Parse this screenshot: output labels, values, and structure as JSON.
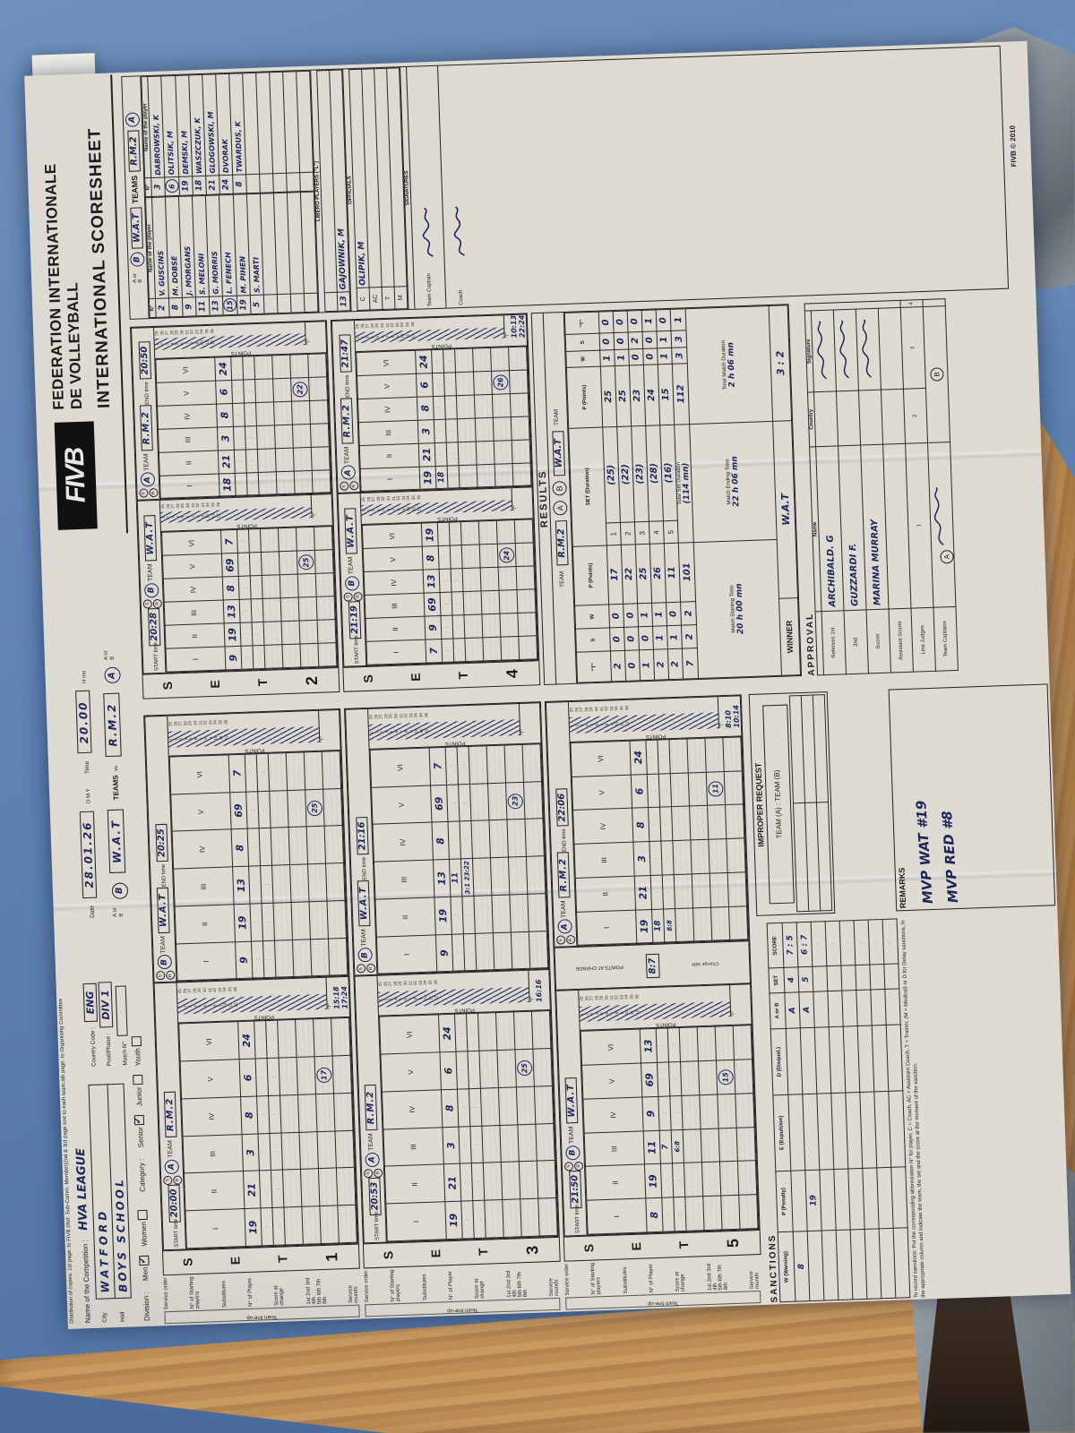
{
  "scene": {
    "floor_color": "#5d81b1",
    "wood_color": "#b88952",
    "metal_color": "#8a9299",
    "ink_color": "#20265a"
  },
  "sheet": {
    "distribution_note": "Distribution of copies: 1st page: to FIVB (Ref. Sub-Comm. Member)2nd & 3rd page one to each team;4th page: to Organising Committee",
    "header": {
      "logo_text": "FIVB",
      "title_line1": "FEDERATION INTERNATIONALE",
      "title_line2": "DE VOLLEYBALL",
      "subtitle": "INTERNATIONAL SCORESHEET",
      "competition_label": "Name of the Competition :",
      "competition_value": "HVA LEAGUE",
      "city_label": "City",
      "city_value": "WATFORD",
      "hall_label": "Hall",
      "hall_value": "BOYS SCHOOL",
      "country_code_label": "Country Code :",
      "country_code_value": "ENG",
      "pool_label": "Pool/Phase :",
      "pool_value": "DIV 1",
      "match_no_label": "Match N°",
      "match_no_value": "",
      "date_label": "Date",
      "date_value": "28.01.26",
      "date_sub": "D      M      Y",
      "time_label": "Time",
      "time_value": "20.00",
      "time_sub": "H      mn",
      "division_label": "Division :",
      "division_options": [
        {
          "label": "Men",
          "checked": true
        },
        {
          "label": "Women",
          "checked": false
        }
      ],
      "category_label": "Category :",
      "category_options": [
        {
          "label": "Senior",
          "checked": true
        },
        {
          "label": "Junior",
          "checked": false
        },
        {
          "label": "Youth",
          "checked": false
        }
      ],
      "a_or_b_label": "A or B",
      "teams_label": "TEAMS",
      "vs_label": "vs",
      "team_left": {
        "circle": "B",
        "name": "W.A.T"
      },
      "team_right": {
        "circle": "A",
        "name": "R.M.2"
      }
    },
    "panel_labels": {
      "set_word": "SET",
      "start": "START time",
      "end": "END time",
      "team": "TEAM",
      "points": "POINTS",
      "t": "\"T\"",
      "hmn": "H    mn",
      "service_order": "Service order",
      "starting_players": "N° of Starting players",
      "substitutes": "Substitutes",
      "player_no": "N° of Player",
      "score_change": "Score at change",
      "service_rounds": "Service rounds",
      "team_lineup": "Team line-up",
      "change_side": "Change side",
      "points_at_change": "POINTS AT CHANGE",
      "romans": [
        "I",
        "II",
        "III",
        "IV",
        "V",
        "VI"
      ],
      "rounds": [
        "1st",
        "2nd",
        "3rd",
        "4th",
        "5th",
        "6th",
        "7th",
        "8th"
      ]
    },
    "sets": [
      {
        "number": "1",
        "start": "20:00",
        "end": "20:25",
        "left": {
          "side": "A",
          "team": "R.M.2",
          "lineup": [
            "19",
            "21",
            "3",
            "8",
            "6",
            "24"
          ],
          "subs": [],
          "timeouts": [
            "15:18",
            "17:24"
          ],
          "final": "17"
        },
        "right": {
          "side": "B",
          "team": "W.A.T",
          "lineup": [
            "9",
            "19",
            "13",
            "8",
            "69",
            "7"
          ],
          "subs": [],
          "timeouts": [],
          "final": "25"
        }
      },
      {
        "number": "2",
        "start": "20:28",
        "end": "20:50",
        "left": {
          "side": "B",
          "team": "W.A.T",
          "lineup": [
            "9",
            "19",
            "13",
            "8",
            "69",
            "7"
          ],
          "subs": [],
          "timeouts": [],
          "final": "25"
        },
        "right": {
          "side": "A",
          "team": "R.M.2",
          "lineup": [
            "18",
            "21",
            "3",
            "8",
            "6",
            "24"
          ],
          "subs": [],
          "timeouts": [],
          "final": "22"
        }
      },
      {
        "number": "3",
        "start": "20:53",
        "end": "21:16",
        "left": {
          "side": "A",
          "team": "R.M.2",
          "lineup": [
            "19",
            "21",
            "3",
            "8",
            "6",
            "24"
          ],
          "subs": [],
          "timeouts": [
            "16:16"
          ],
          "final": "25"
        },
        "right": {
          "side": "B",
          "team": "W.A.T",
          "lineup": [
            "9",
            "19",
            "13",
            "8",
            "69",
            "7"
          ],
          "subs": [
            {
              "col": 3,
              "player": "11",
              "scores": [
                "3:1",
                "23:22"
              ]
            }
          ],
          "timeouts": [],
          "final": "23"
        }
      },
      {
        "number": "4",
        "start": "21:19",
        "end": "21:47",
        "left": {
          "side": "B",
          "team": "W.A.T",
          "lineup": [
            "7",
            "9",
            "69",
            "13",
            "8",
            "19"
          ],
          "subs": [],
          "timeouts": [],
          "final": "24"
        },
        "right": {
          "side": "A",
          "team": "R.M.2",
          "lineup": [
            "19",
            "21",
            "3",
            "8",
            "6",
            "24"
          ],
          "subs": [
            {
              "col": 1,
              "player": "18",
              "scores": []
            }
          ],
          "timeouts": [
            "10:13",
            "22:24"
          ],
          "final": "26"
        }
      },
      {
        "number": "5",
        "start": "21:50",
        "end": "22:06",
        "points_at_change": "8:7",
        "left": {
          "side": "B",
          "team": "W.A.T",
          "lineup": [
            "8",
            "19",
            "11",
            "9",
            "69",
            "13"
          ],
          "subs": [
            {
              "col": 3,
              "player": "7",
              "scores": [
                "6:8"
              ]
            }
          ],
          "timeouts": [],
          "final": "15"
        },
        "right": {
          "side": "A",
          "team": "R.M.2",
          "lineup": [
            "19",
            "21",
            "3",
            "8",
            "6",
            "24"
          ],
          "subs": [
            {
              "col": 1,
              "player": "18",
              "scores": [
                "8:8"
              ]
            }
          ],
          "timeouts": [
            "8:10",
            "10:14"
          ],
          "final": "11"
        }
      }
    ],
    "results": {
      "title": "RESULTS",
      "team_label": "TEAM",
      "team_a": "R.M.2",
      "team_b": "W.A.T",
      "cols_left": [
        "\"T\"",
        "S",
        "W",
        "P (Points)"
      ],
      "col_set": "SET  (Duration)",
      "cols_right": [
        "P (Points)",
        "W",
        "S",
        "\"T\""
      ],
      "rows": [
        {
          "a": [
            "2",
            "0",
            "0",
            "17"
          ],
          "set": "1",
          "dur": "(25)",
          "b": [
            "25",
            "1",
            "0",
            "0"
          ]
        },
        {
          "a": [
            "0",
            "0",
            "0",
            "22"
          ],
          "set": "2",
          "dur": "(22)",
          "b": [
            "25",
            "1",
            "0",
            "0"
          ]
        },
        {
          "a": [
            "1",
            "0",
            "1",
            "25"
          ],
          "set": "3",
          "dur": "(23)",
          "b": [
            "23",
            "0",
            "2",
            "0"
          ]
        },
        {
          "a": [
            "2",
            "1",
            "1",
            "26"
          ],
          "set": "4",
          "dur": "(28)",
          "b": [
            "24",
            "0",
            "0",
            "1"
          ]
        },
        {
          "a": [
            "2",
            "1",
            "0",
            "11"
          ],
          "set": "5",
          "dur": "(16)",
          "b": [
            "15",
            "1",
            "1",
            "0"
          ]
        }
      ],
      "totals": {
        "a": [
          "7",
          "2",
          "2",
          "101"
        ],
        "label": "Total Set Duration",
        "dur": "(114 mn)",
        "b": [
          "112",
          "3",
          "3",
          "1"
        ]
      },
      "match_start_label": "Match Starting Time",
      "match_start_value": "20 h 00 mn",
      "match_end_label": "Match Ending Time",
      "match_end_value": "22 h 06 mn",
      "match_duration_label": "Total Match Duration",
      "match_duration_value": "2 h 06 mn",
      "winner_label": "WINNER",
      "winner_name": "W.A.T",
      "winner_score": "3 : 2"
    },
    "teams_panel": {
      "title": "TEAMS",
      "a_or_b": "A or B",
      "no_col": "N°",
      "name_col": "Name of the player",
      "team_left": {
        "circle": "B",
        "name": "W.A.T",
        "players": [
          {
            "no": "2",
            "name": "V. GUSCINS",
            "captain": false
          },
          {
            "no": "8",
            "name": "M. DOBSE",
            "captain": false
          },
          {
            "no": "9",
            "name": "J. MORGANS",
            "captain": false
          },
          {
            "no": "11",
            "name": "S. MELONI",
            "captain": false
          },
          {
            "no": "13",
            "name": "G. MORRIS",
            "captain": false
          },
          {
            "no": "15",
            "name": "L. FENECH",
            "captain": true
          },
          {
            "no": "19",
            "name": "M. PIHEN",
            "captain": false
          },
          {
            "no": "5",
            "name": "S. MARTI",
            "captain": false
          }
        ]
      },
      "team_right": {
        "circle": "A",
        "name": "R.M.2",
        "players": [
          {
            "no": "3",
            "name": "DABROWSKI, K",
            "captain": false
          },
          {
            "no": "6",
            "name": "OLITSIK, M",
            "captain": true
          },
          {
            "no": "19",
            "name": "DEMSKI, M",
            "captain": false
          },
          {
            "no": "18",
            "name": "WASZCZUK, K",
            "captain": false
          },
          {
            "no": "21",
            "name": "GLOGOWSKI, M",
            "captain": false
          },
          {
            "no": "24",
            "name": "DVORAK",
            "captain": false
          },
          {
            "no": "8",
            "name": "TWARDUS, K",
            "captain": false
          }
        ]
      },
      "libero": {
        "title": "LIBERO PLAYERS (\"L\")",
        "rows": [
          {
            "no": "",
            "name": ""
          },
          {
            "no": "13",
            "name": "GAJOWNIK, M"
          }
        ]
      },
      "officials": {
        "title": "OFFICIALS",
        "rows": [
          {
            "role": "C",
            "name": "OLIPIK, M"
          },
          {
            "role": "AC",
            "name": ""
          },
          {
            "role": "T",
            "name": ""
          },
          {
            "role": "M",
            "name": ""
          }
        ]
      },
      "signatures": {
        "title": "SIGNATURES",
        "rows": [
          {
            "label": "Team Captain"
          },
          {
            "label": "Coach"
          }
        ]
      }
    },
    "sanctions": {
      "title": "SANCTIONS",
      "cols": [
        "W (Warning)",
        "P (Penalty)",
        "E (Expulsion)",
        "D (Disqual.)",
        "A or B",
        "SET",
        "SCORE"
      ],
      "rows": [
        {
          "w": "8",
          "p": "",
          "e": "",
          "d": "",
          "team": "A",
          "set": "4",
          "score": "7 : 5"
        },
        {
          "w": "",
          "p": "19",
          "e": "",
          "d": "",
          "team": "A",
          "set": "5",
          "score": "6 : 7"
        }
      ],
      "empty_rows": 6,
      "footnote": "To record sanctions:  Put the corresponding abbreviation N° for player,  C = Coach,  AC = Assistant Coach,  T = Trainer, (M = Medical) or D for Delay sanctions, in the appropriate column and indicate the team, the set and the score at the moment of the sanction."
    },
    "improper_request": {
      "title": "IMPROPER REQUEST",
      "team_line": "TEAM (A) : TEAM (B)"
    },
    "remarks": {
      "title": "REMARKS",
      "lines": [
        "MVP  WAT  #19",
        "MVP  RED  #8"
      ]
    },
    "approval": {
      "title": "APPROVAL",
      "name_col": "Name",
      "country_col": "Country",
      "signature_col": "Signature",
      "referees_label": "Referees",
      "rows": [
        {
          "label": "1st",
          "name": "ARCHIBALD. G",
          "signed": true
        },
        {
          "label": "2nd",
          "name": "GUZZARDI  F.",
          "signed": true
        },
        {
          "label": "Scorer",
          "name": "MARINA MURRAY",
          "signed": true
        },
        {
          "label": "Assistant Scorer",
          "name": "",
          "signed": false
        }
      ],
      "line_judges_label": "Line Judges",
      "line_judges_cells": [
        "1",
        "2",
        "3",
        "4"
      ],
      "team_captains_label": "Team Captains",
      "team_captains_cells": [
        "A",
        "B"
      ]
    },
    "footer_copyright": "FIVB © 2010"
  }
}
